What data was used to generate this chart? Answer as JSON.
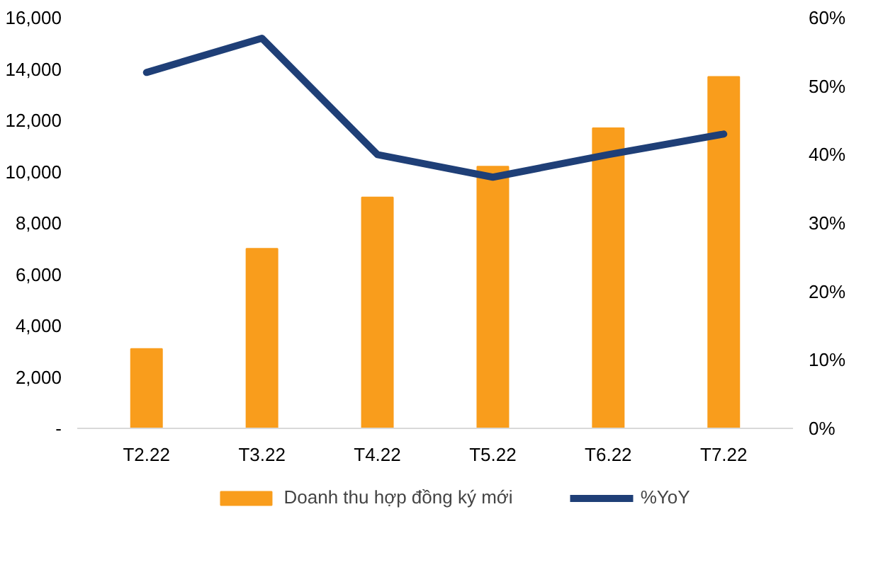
{
  "chart_data": {
    "type": "bar",
    "categories": [
      "T2.22",
      "T3.22",
      "T4.22",
      "T5.22",
      "T6.22",
      "T7.22"
    ],
    "series": [
      {
        "name": "Doanh thu hợp đồng ký mới",
        "color": "#f99d1c",
        "values": [
          3100,
          7000,
          9000,
          10200,
          11700,
          13700
        ]
      },
      {
        "name": "%YoY",
        "type": "line",
        "axis": "y2",
        "color": "#1f3f77",
        "values": [
          52,
          57,
          40,
          36.7,
          40,
          43
        ]
      }
    ],
    "ylim": [
      0,
      16000
    ],
    "yticks": [
      {
        "value": 0,
        "label": "-"
      },
      {
        "value": 2000,
        "label": "2,000"
      },
      {
        "value": 4000,
        "label": "4,000"
      },
      {
        "value": 6000,
        "label": "6,000"
      },
      {
        "value": 8000,
        "label": "8,000"
      },
      {
        "value": 10000,
        "label": "10,000"
      },
      {
        "value": 12000,
        "label": "12,000"
      },
      {
        "value": 14000,
        "label": "14,000"
      },
      {
        "value": 16000,
        "label": "16,000"
      }
    ],
    "y2lim": [
      0,
      60
    ],
    "y2ticks": [
      {
        "value": 0,
        "label": "0%"
      },
      {
        "value": 10,
        "label": "10%"
      },
      {
        "value": 20,
        "label": "20%"
      },
      {
        "value": 30,
        "label": "30%"
      },
      {
        "value": 40,
        "label": "40%"
      },
      {
        "value": 50,
        "label": "50%"
      },
      {
        "value": 60,
        "label": "60%"
      }
    ],
    "legend": "bottom",
    "grid": false
  }
}
